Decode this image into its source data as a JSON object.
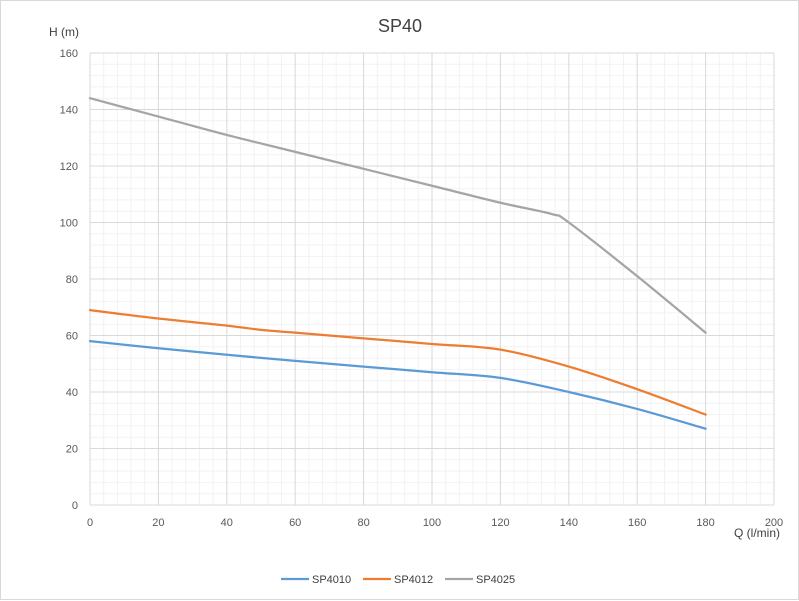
{
  "chart_data": {
    "type": "line",
    "title": "SP40",
    "xlabel": "Q (l/min)",
    "ylabel": "H (m)",
    "xlim": [
      0,
      200
    ],
    "ylim": [
      0,
      160
    ],
    "x_ticks": [
      0,
      20,
      40,
      60,
      80,
      100,
      120,
      140,
      160,
      180,
      200
    ],
    "y_ticks": [
      0,
      20,
      40,
      60,
      80,
      100,
      120,
      140,
      160
    ],
    "minor_x_step": 4,
    "minor_y_step": 4,
    "grid": true,
    "legend_position": "bottom",
    "series": [
      {
        "name": "SP4010",
        "color": "#5b9bd5",
        "x": [
          0,
          20,
          40,
          60,
          80,
          100,
          120,
          140,
          160,
          180
        ],
        "y": [
          58,
          55.5,
          53.2,
          51,
          49,
          47,
          45,
          40,
          34,
          27
        ]
      },
      {
        "name": "SP4012",
        "color": "#ed7d31",
        "x": [
          0,
          20,
          40,
          50,
          60,
          80,
          100,
          120,
          140,
          160,
          180
        ],
        "y": [
          69,
          66,
          63.5,
          62,
          61,
          59,
          57,
          55,
          49,
          41,
          32
        ]
      },
      {
        "name": "SP4025",
        "color": "#a5a5a5",
        "x": [
          0,
          20,
          40,
          60,
          80,
          100,
          120,
          135,
          140,
          160,
          180
        ],
        "y": [
          144,
          137.5,
          131,
          125,
          119,
          113,
          107,
          103,
          100,
          81,
          61
        ]
      }
    ]
  }
}
